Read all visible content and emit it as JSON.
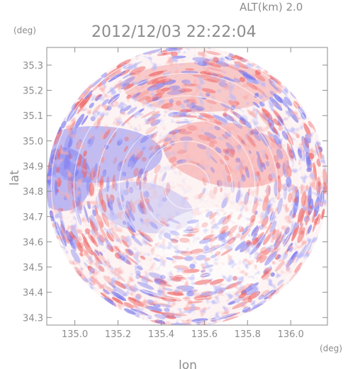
{
  "header": {
    "altitude_label": "ALT(km) 2.0",
    "timestamp": "2012/12/03 22:22:04"
  },
  "chart_data": {
    "type": "heatmap",
    "xlabel": "lon",
    "ylabel": "lat",
    "x_unit": "(deg)",
    "y_unit": "(deg)",
    "xlim": [
      134.87,
      136.17
    ],
    "ylim": [
      34.27,
      35.37
    ],
    "x_ticks": [
      135.0,
      135.2,
      135.4,
      135.6,
      135.8,
      136.0
    ],
    "x_tick_labels": [
      "135.0",
      "135.2",
      "135.4",
      "135.6",
      "135.8",
      "136.0"
    ],
    "y_ticks": [
      34.3,
      34.4,
      34.5,
      34.6,
      34.7,
      34.8,
      34.9,
      35.0,
      35.1,
      35.2,
      35.3
    ],
    "y_tick_labels": [
      "34.3",
      "34.4",
      "34.5",
      "34.6",
      "34.7",
      "34.8",
      "34.9",
      "35.0",
      "35.1",
      "35.2",
      "35.3"
    ],
    "grid": false,
    "radar_center": [
      135.52,
      34.82
    ],
    "colors": {
      "positive": "#f06a6a",
      "negative": "#7b7bf0",
      "neutral": "#fdf2f2",
      "axis": "#8c8c8c"
    }
  }
}
